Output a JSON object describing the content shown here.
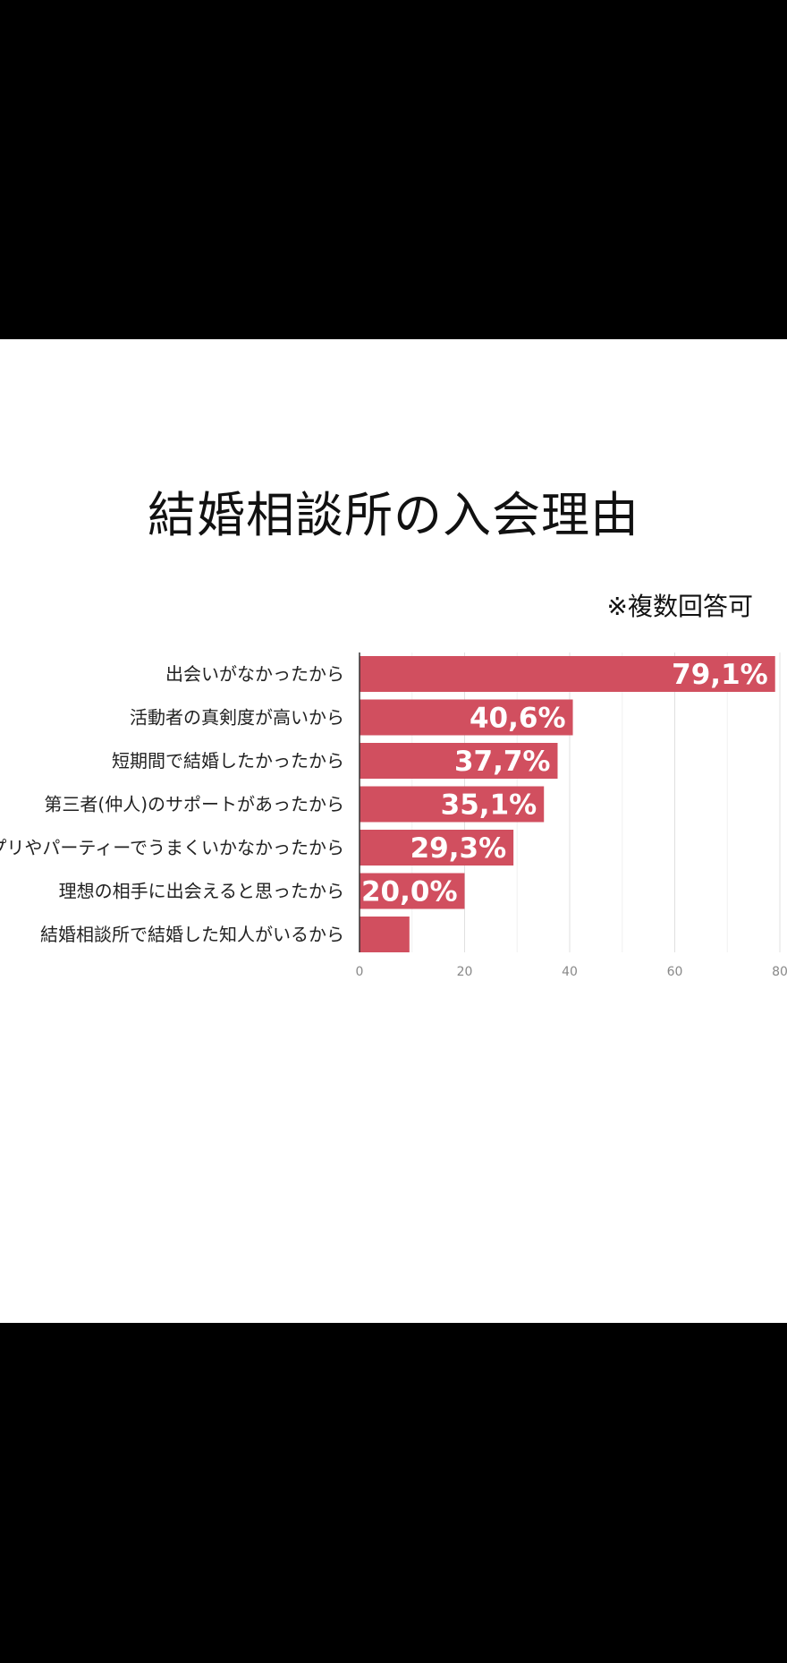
{
  "chart_data": {
    "type": "bar",
    "orientation": "horizontal",
    "title": "結婚相談所の入会理由",
    "note": "※複数回答可",
    "categories": [
      "出会いがなかったから",
      "活動者の真剣度が高いから",
      "短期間で結婚したかったから",
      "第三者(仲人)のサポートがあったから",
      "アプリやパーティーでうまくいかなかったから",
      "理想の相手に出会えると思ったから",
      "結婚相談所で結婚した知人がいるから"
    ],
    "values": [
      79.1,
      40.6,
      37.7,
      35.1,
      29.3,
      20.0,
      9.5
    ],
    "data_labels": [
      "79,1%",
      "40,6%",
      "37,7%",
      "35,1%",
      "29,3%",
      "20,0%",
      ""
    ],
    "xticks": [
      "0",
      "20",
      "40",
      "60",
      "80"
    ],
    "xlim": [
      0,
      80
    ],
    "grid": true,
    "bar_color": "#d14f5f"
  }
}
